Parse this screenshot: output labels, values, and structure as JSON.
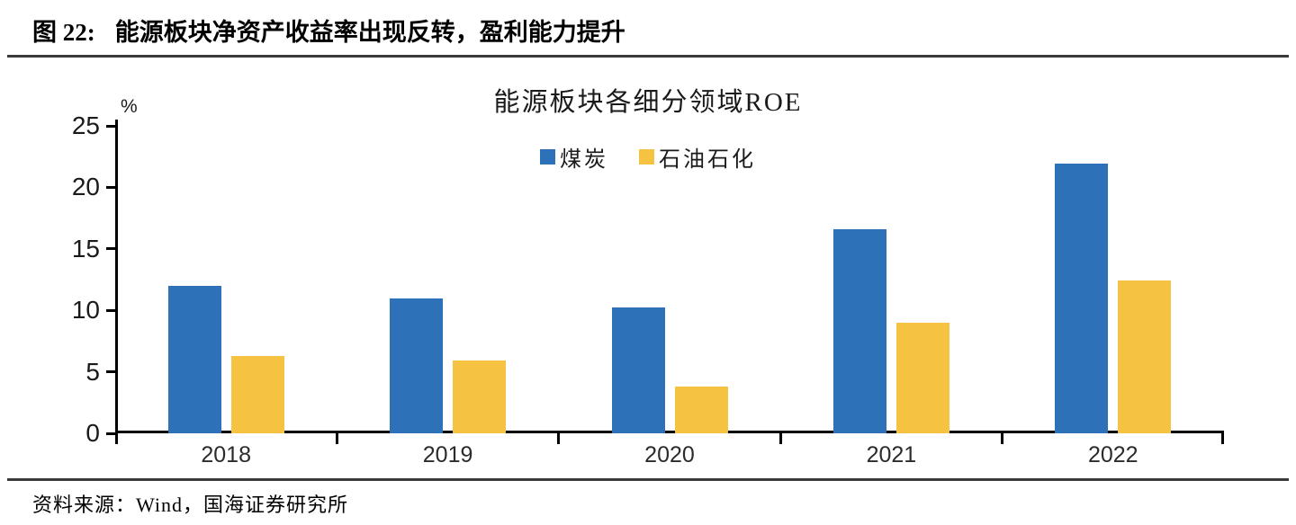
{
  "page": {
    "caption_prefix": "图 22:",
    "caption_text": "能源板块净资产收益率出现反转，盈利能力提升",
    "source_text": "资料来源：Wind，国海证券研究所"
  },
  "chart_data": {
    "type": "bar",
    "title": "能源板块各细分领域ROE",
    "ylabel": "%",
    "xlabel": "",
    "categories": [
      "2018",
      "2019",
      "2020",
      "2021",
      "2022"
    ],
    "series": [
      {
        "key": "coal",
        "name": "煤炭",
        "color": "#2D71B9",
        "values": [
          12.0,
          11.0,
          10.2,
          16.6,
          21.9
        ]
      },
      {
        "key": "oil",
        "name": "石油石化",
        "color": "#F5C242",
        "values": [
          6.3,
          5.9,
          3.8,
          9.0,
          12.4
        ]
      }
    ],
    "ylim": [
      0,
      25
    ],
    "yticks": [
      0,
      5,
      10,
      15,
      20,
      25
    ],
    "grid": false,
    "legend_position": "top-center"
  },
  "colors": {
    "axis": "#000000",
    "divider": "#3a3a3a",
    "text": "#1a1a1a"
  }
}
